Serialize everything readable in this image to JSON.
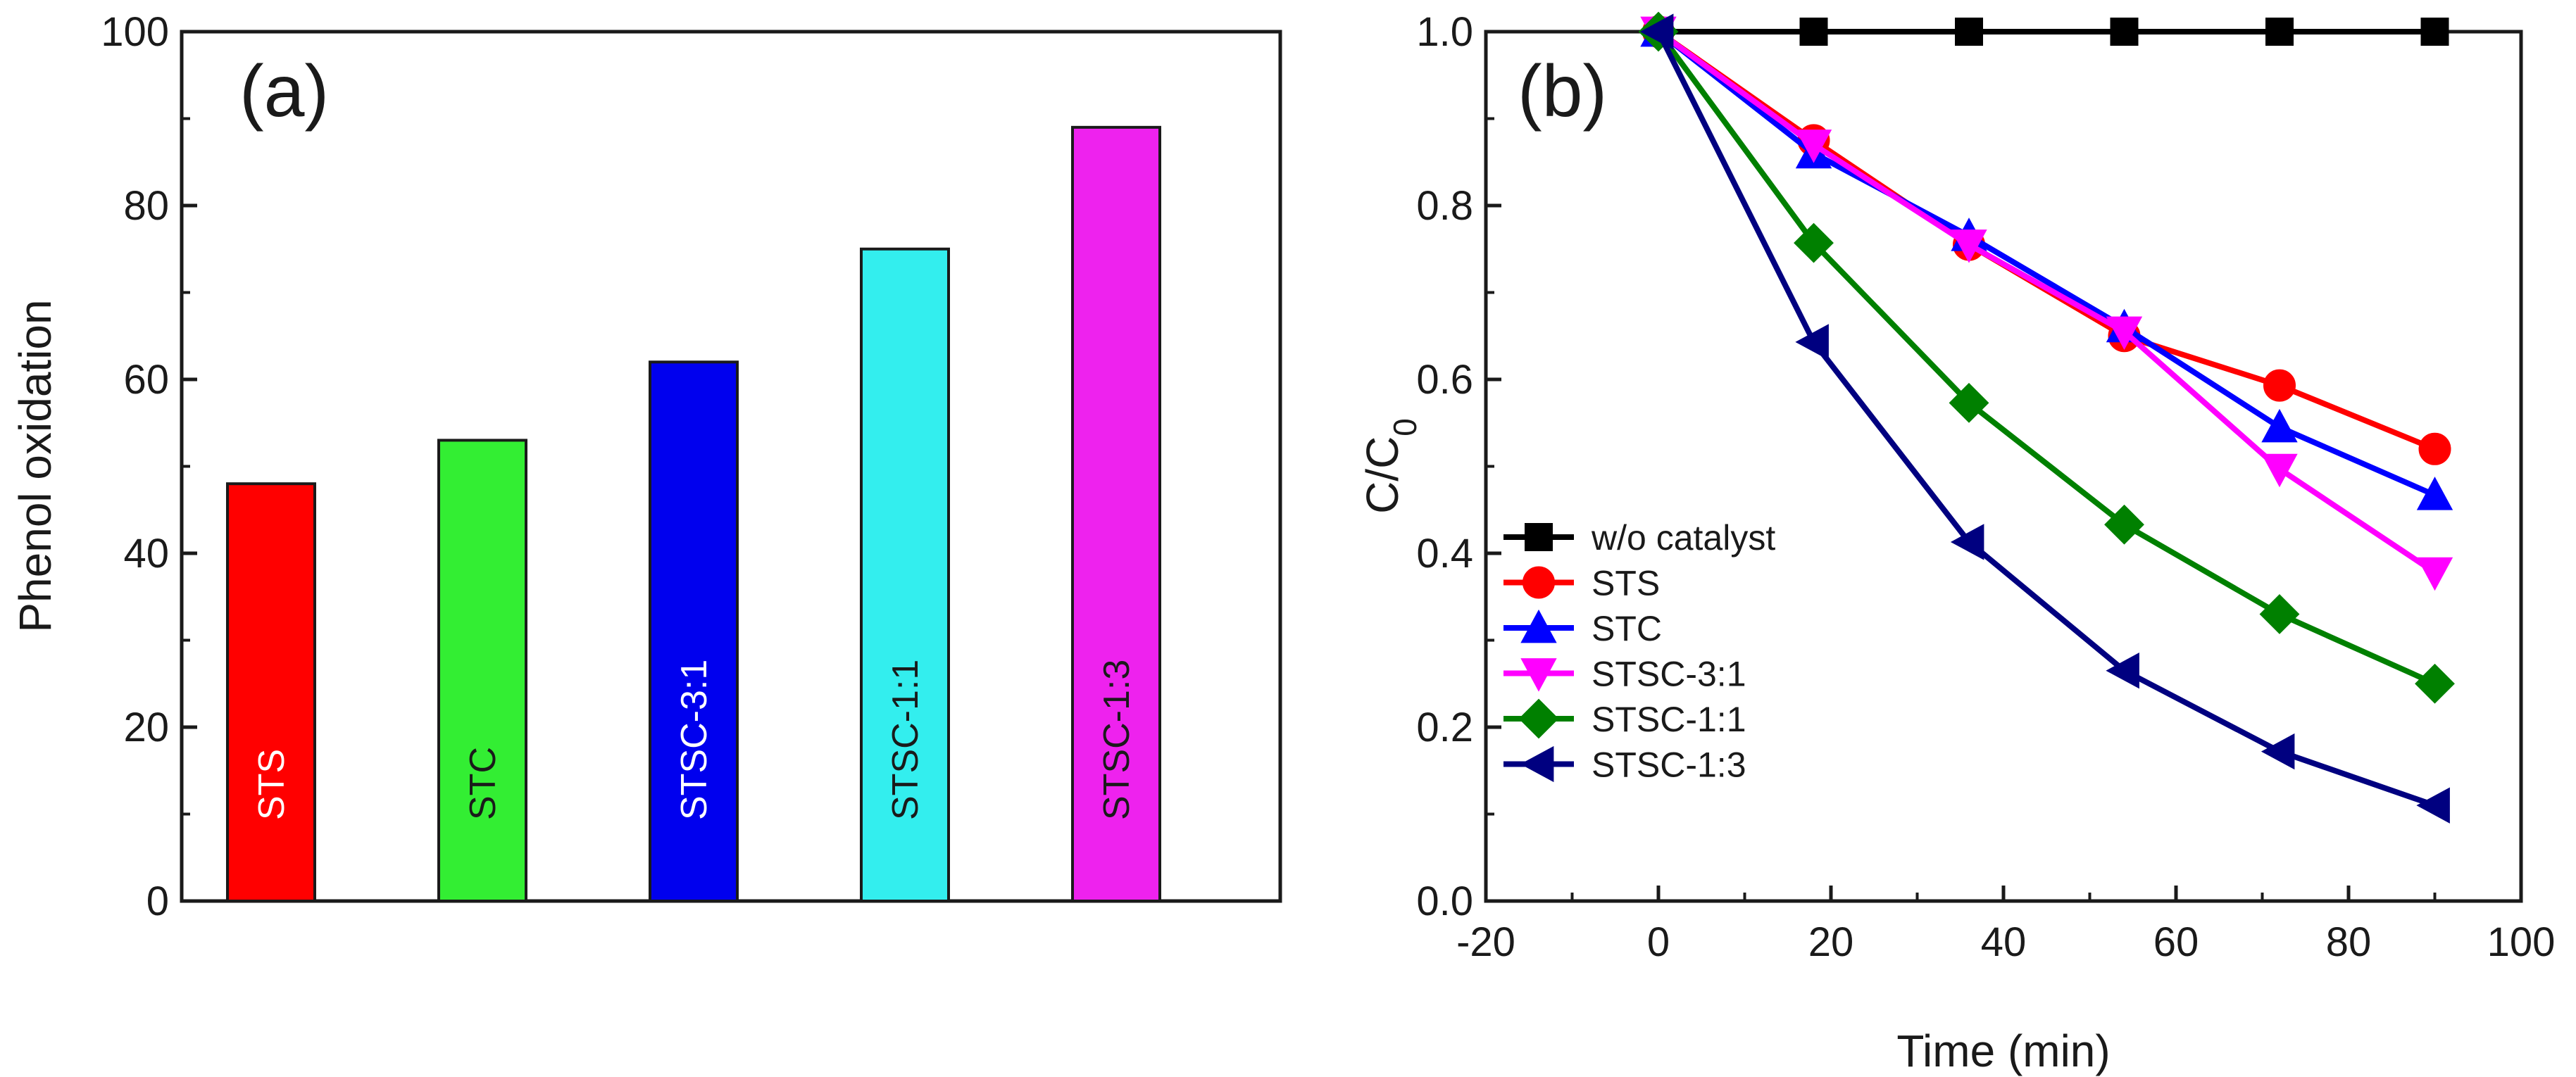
{
  "chart_data": [
    {
      "panel": "(a)",
      "type": "bar",
      "title": "",
      "xlabel": "",
      "ylabel": "Phenol oxidation",
      "ylim": [
        0,
        100
      ],
      "yticks": [
        0,
        20,
        40,
        60,
        80,
        100
      ],
      "categories": [
        "STS",
        "STC",
        "STSC-3:1",
        "STSC-1:1",
        "STSC-1:3"
      ],
      "values": [
        48,
        53,
        62,
        75,
        89
      ],
      "colors": [
        "#ff0000",
        "#33ee33",
        "#0000ee",
        "#33eeee",
        "#ee22ee"
      ],
      "bar_label_colors": [
        "#ffffff",
        "#1a1a1a",
        "#ffffff",
        "#1a1a1a",
        "#1a1a1a"
      ],
      "grid": false
    },
    {
      "panel": "(b)",
      "type": "line",
      "title": "",
      "xlabel": "Time (min)",
      "ylabel": "C/C0",
      "ylabel_main": "C/C",
      "ylabel_sub": "0",
      "xlim": [
        -20,
        100
      ],
      "ylim": [
        0.0,
        1.0
      ],
      "xticks": [
        -20,
        0,
        20,
        40,
        60,
        80,
        100
      ],
      "yticks": [
        0.0,
        0.2,
        0.4,
        0.6,
        0.8,
        1.0
      ],
      "ytick_labels": [
        "0.0",
        "0.2",
        "0.4",
        "0.6",
        "0.8",
        "1.0"
      ],
      "x": [
        0,
        18,
        36,
        54,
        72,
        90
      ],
      "legend_position": "center-left",
      "grid": false,
      "series": [
        {
          "name": "w/o catalyst",
          "color": "#000000",
          "marker": "square",
          "values": [
            1.0,
            1.0,
            1.0,
            1.0,
            1.0,
            1.0
          ]
        },
        {
          "name": "STS",
          "color": "#ff0000",
          "marker": "circle",
          "values": [
            1.0,
            0.875,
            0.755,
            0.65,
            0.593,
            0.52
          ]
        },
        {
          "name": "STC",
          "color": "#0000ff",
          "marker": "triangle-up",
          "values": [
            1.0,
            0.86,
            0.765,
            0.66,
            0.545,
            0.467
          ]
        },
        {
          "name": "STSC-3:1",
          "color": "#ff00ff",
          "marker": "triangle-down",
          "values": [
            1.0,
            0.87,
            0.755,
            0.655,
            0.497,
            0.378
          ]
        },
        {
          "name": "STSC-1:1",
          "color": "#008000",
          "marker": "diamond",
          "values": [
            1.0,
            0.757,
            0.573,
            0.433,
            0.33,
            0.25
          ]
        },
        {
          "name": "STSC-1:3",
          "color": "#000080",
          "marker": "triangle-left",
          "values": [
            1.0,
            0.643,
            0.413,
            0.265,
            0.172,
            0.11
          ]
        }
      ]
    }
  ]
}
